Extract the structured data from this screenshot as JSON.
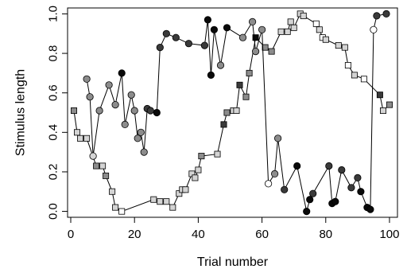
{
  "chart_data": {
    "type": "scatter",
    "xlabel": "Trial number",
    "ylabel": "Stimulus length",
    "xlim": [
      -1,
      102.5
    ],
    "ylim": [
      -0.03,
      1.03
    ],
    "xticks": [
      0,
      20,
      40,
      60,
      80,
      100
    ],
    "yticks": [
      0.0,
      0.2,
      0.4,
      0.6,
      0.8,
      1.0
    ],
    "xtick_labels": [
      "0",
      "20",
      "40",
      "60",
      "80",
      "100"
    ],
    "ytick_labels": [
      "0.0",
      "0.2",
      "0.4",
      "0.6",
      "0.8",
      "1.0"
    ],
    "grid": false,
    "colors": {
      "white": "#ffffff",
      "light": "#d4d4d4",
      "mid": "#8c8c8c",
      "dark": "#3a3a3a",
      "black": "#0a0a0a"
    },
    "series": [
      {
        "marker": "square",
        "points": [
          {
            "x": 1,
            "y": 0.51,
            "c": "mid"
          },
          {
            "x": 2,
            "y": 0.4,
            "c": "light"
          },
          {
            "x": 3,
            "y": 0.37,
            "c": "light"
          },
          {
            "x": 5,
            "y": 0.37,
            "c": "light"
          },
          {
            "x": 8,
            "y": 0.23,
            "c": "mid"
          },
          {
            "x": 10,
            "y": 0.23,
            "c": "light"
          },
          {
            "x": 11,
            "y": 0.18,
            "c": "mid"
          },
          {
            "x": 13,
            "y": 0.1,
            "c": "light"
          },
          {
            "x": 14,
            "y": 0.02,
            "c": "light"
          },
          {
            "x": 16,
            "y": 0.0,
            "c": "white"
          },
          {
            "x": 26,
            "y": 0.06,
            "c": "light"
          },
          {
            "x": 28,
            "y": 0.05,
            "c": "light"
          },
          {
            "x": 30,
            "y": 0.05,
            "c": "light"
          },
          {
            "x": 32,
            "y": 0.02,
            "c": "light"
          },
          {
            "x": 34,
            "y": 0.09,
            "c": "light"
          },
          {
            "x": 35,
            "y": 0.11,
            "c": "light"
          },
          {
            "x": 36,
            "y": 0.11,
            "c": "light"
          },
          {
            "x": 38,
            "y": 0.19,
            "c": "light"
          },
          {
            "x": 39,
            "y": 0.17,
            "c": "light"
          },
          {
            "x": 40,
            "y": 0.21,
            "c": "light"
          },
          {
            "x": 41,
            "y": 0.28,
            "c": "mid"
          },
          {
            "x": 46,
            "y": 0.29,
            "c": "light"
          },
          {
            "x": 48,
            "y": 0.44,
            "c": "dark"
          },
          {
            "x": 49,
            "y": 0.5,
            "c": "mid"
          },
          {
            "x": 51,
            "y": 0.51,
            "c": "light"
          },
          {
            "x": 52,
            "y": 0.51,
            "c": "light"
          },
          {
            "x": 53,
            "y": 0.64,
            "c": "dark"
          },
          {
            "x": 55,
            "y": 0.58,
            "c": "mid"
          },
          {
            "x": 56,
            "y": 0.7,
            "c": "mid"
          },
          {
            "x": 58,
            "y": 0.88,
            "c": "black"
          },
          {
            "x": 61,
            "y": 0.83,
            "c": "mid"
          },
          {
            "x": 63,
            "y": 0.81,
            "c": "mid"
          },
          {
            "x": 66,
            "y": 0.91,
            "c": "light"
          },
          {
            "x": 68,
            "y": 0.91,
            "c": "light"
          },
          {
            "x": 69,
            "y": 0.96,
            "c": "light"
          },
          {
            "x": 70,
            "y": 0.93,
            "c": "light"
          },
          {
            "x": 72,
            "y": 1.0,
            "c": "light"
          },
          {
            "x": 73,
            "y": 0.99,
            "c": "light"
          },
          {
            "x": 77,
            "y": 0.95,
            "c": "white"
          },
          {
            "x": 78,
            "y": 0.92,
            "c": "light"
          },
          {
            "x": 79,
            "y": 0.88,
            "c": "white"
          },
          {
            "x": 80,
            "y": 0.87,
            "c": "light"
          },
          {
            "x": 84,
            "y": 0.84,
            "c": "light"
          },
          {
            "x": 86,
            "y": 0.83,
            "c": "light"
          },
          {
            "x": 87,
            "y": 0.74,
            "c": "white"
          },
          {
            "x": 89,
            "y": 0.69,
            "c": "light"
          },
          {
            "x": 92,
            "y": 0.67,
            "c": "white"
          },
          {
            "x": 97,
            "y": 0.59,
            "c": "dark"
          },
          {
            "x": 98,
            "y": 0.51,
            "c": "light"
          },
          {
            "x": 100,
            "y": 0.54,
            "c": "mid"
          }
        ]
      },
      {
        "marker": "circle",
        "points": [
          {
            "x": 5,
            "y": 0.67,
            "c": "mid"
          },
          {
            "x": 6,
            "y": 0.58,
            "c": "mid"
          },
          {
            "x": 7,
            "y": 0.28,
            "c": "light"
          },
          {
            "x": 9,
            "y": 0.51,
            "c": "mid"
          },
          {
            "x": 12,
            "y": 0.64,
            "c": "mid"
          },
          {
            "x": 14,
            "y": 0.54,
            "c": "mid"
          },
          {
            "x": 16,
            "y": 0.7,
            "c": "black"
          },
          {
            "x": 17,
            "y": 0.44,
            "c": "mid"
          },
          {
            "x": 19,
            "y": 0.59,
            "c": "mid"
          },
          {
            "x": 20,
            "y": 0.51,
            "c": "mid"
          },
          {
            "x": 21,
            "y": 0.37,
            "c": "mid"
          },
          {
            "x": 22,
            "y": 0.4,
            "c": "mid"
          },
          {
            "x": 23,
            "y": 0.3,
            "c": "mid"
          },
          {
            "x": 24,
            "y": 0.52,
            "c": "dark"
          },
          {
            "x": 25,
            "y": 0.51,
            "c": "dark"
          },
          {
            "x": 27,
            "y": 0.5,
            "c": "black"
          },
          {
            "x": 28,
            "y": 0.83,
            "c": "dark"
          },
          {
            "x": 30,
            "y": 0.9,
            "c": "dark"
          },
          {
            "x": 33,
            "y": 0.88,
            "c": "dark"
          },
          {
            "x": 37,
            "y": 0.85,
            "c": "dark"
          },
          {
            "x": 42,
            "y": 0.84,
            "c": "dark"
          },
          {
            "x": 43,
            "y": 0.97,
            "c": "black"
          },
          {
            "x": 44,
            "y": 0.69,
            "c": "black"
          },
          {
            "x": 45,
            "y": 0.92,
            "c": "black"
          },
          {
            "x": 47,
            "y": 0.74,
            "c": "mid"
          },
          {
            "x": 49,
            "y": 0.93,
            "c": "black"
          },
          {
            "x": 54,
            "y": 0.88,
            "c": "mid"
          },
          {
            "x": 57,
            "y": 0.96,
            "c": "mid"
          },
          {
            "x": 58,
            "y": 0.81,
            "c": "mid"
          },
          {
            "x": 60,
            "y": 0.92,
            "c": "mid"
          },
          {
            "x": 62,
            "y": 0.14,
            "c": "white"
          },
          {
            "x": 64,
            "y": 0.19,
            "c": "mid"
          },
          {
            "x": 65,
            "y": 0.37,
            "c": "mid"
          },
          {
            "x": 67,
            "y": 0.11,
            "c": "dark"
          },
          {
            "x": 71,
            "y": 0.23,
            "c": "black"
          },
          {
            "x": 74,
            "y": 0.0,
            "c": "black"
          },
          {
            "x": 75,
            "y": 0.06,
            "c": "black"
          },
          {
            "x": 76,
            "y": 0.09,
            "c": "dark"
          },
          {
            "x": 81,
            "y": 0.23,
            "c": "dark"
          },
          {
            "x": 82,
            "y": 0.04,
            "c": "black"
          },
          {
            "x": 83,
            "y": 0.05,
            "c": "black"
          },
          {
            "x": 85,
            "y": 0.21,
            "c": "dark"
          },
          {
            "x": 88,
            "y": 0.12,
            "c": "dark"
          },
          {
            "x": 90,
            "y": 0.17,
            "c": "dark"
          },
          {
            "x": 91,
            "y": 0.1,
            "c": "black"
          },
          {
            "x": 93,
            "y": 0.02,
            "c": "black"
          },
          {
            "x": 94,
            "y": 0.01,
            "c": "black"
          },
          {
            "x": 95,
            "y": 0.92,
            "c": "white"
          },
          {
            "x": 96,
            "y": 0.99,
            "c": "dark"
          },
          {
            "x": 99,
            "y": 1.0,
            "c": "dark"
          }
        ]
      }
    ]
  }
}
